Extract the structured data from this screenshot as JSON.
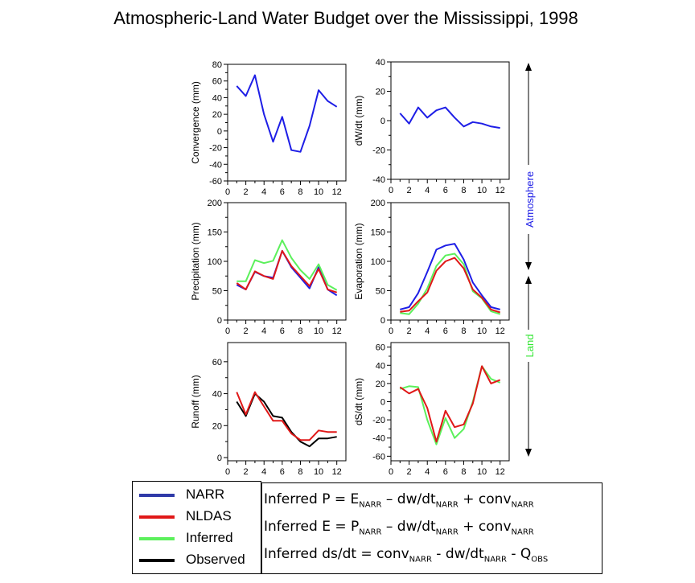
{
  "title": "Atmospheric-Land Water Budget over the Mississippi, 1998",
  "side_labels": {
    "atmosphere": {
      "text": "Atmosphere",
      "color": "#1e1ee6"
    },
    "land": {
      "text": "Land",
      "color": "#33e633"
    }
  },
  "legend": [
    {
      "label": "NARR",
      "color": "#2f3aa8"
    },
    {
      "label": "NLDAS",
      "color": "#e01818"
    },
    {
      "label": "Inferred",
      "color": "#5cf05c"
    },
    {
      "label": "Observed",
      "color": "#000000"
    }
  ],
  "formulas": [
    {
      "parts": [
        "Inferred P = E",
        "NARR",
        " – dw/dt",
        "NARR",
        " + conv",
        "NARR"
      ]
    },
    {
      "parts": [
        "Inferred E = P",
        "NARR",
        " – dw/dt",
        "NARR",
        " + conv",
        "NARR"
      ]
    },
    {
      "parts": [
        "Inferred ds/dt = conv",
        "NARR",
        " - dw/dt",
        "NARR",
        " - Q",
        "OBS"
      ]
    }
  ],
  "chart_data": [
    {
      "type": "line",
      "ylabel": "Convergence (mm)",
      "xlim": [
        0,
        13
      ],
      "ylim": [
        -60,
        80
      ],
      "xticks": [
        0,
        2,
        4,
        6,
        8,
        10,
        12
      ],
      "yticks": [
        -60,
        -40,
        -20,
        0,
        20,
        40,
        60,
        80
      ],
      "x": [
        1,
        2,
        3,
        4,
        5,
        6,
        7,
        8,
        9,
        10,
        11,
        12
      ],
      "series": [
        {
          "color": "#1e1ee6",
          "values": [
            54,
            42,
            67,
            20,
            -13,
            17,
            -23,
            -25,
            6,
            49,
            36,
            29
          ]
        }
      ]
    },
    {
      "type": "line",
      "ylabel": "dW/dt (mm)",
      "xlim": [
        0,
        13
      ],
      "ylim": [
        -40,
        40
      ],
      "xticks": [
        0,
        2,
        4,
        6,
        8,
        10,
        12
      ],
      "yticks": [
        -40,
        -20,
        0,
        20,
        40
      ],
      "x": [
        1,
        2,
        3,
        4,
        5,
        6,
        7,
        8,
        9,
        10,
        11,
        12
      ],
      "series": [
        {
          "color": "#1e1ee6",
          "values": [
            5,
            -2,
            9,
            2,
            7,
            9,
            2,
            -4,
            -1,
            -2,
            -4,
            -5
          ]
        }
      ]
    },
    {
      "type": "line",
      "ylabel": "Precipitation (mm)",
      "xlim": [
        0,
        13
      ],
      "ylim": [
        0,
        200
      ],
      "xticks": [
        0,
        2,
        4,
        6,
        8,
        10,
        12
      ],
      "yticks": [
        0,
        50,
        100,
        150,
        200
      ],
      "x": [
        1,
        2,
        3,
        4,
        5,
        6,
        7,
        8,
        9,
        10,
        11,
        12
      ],
      "series": [
        {
          "color": "#1e1ee6",
          "values": [
            60,
            52,
            82,
            75,
            72,
            118,
            90,
            72,
            54,
            90,
            52,
            42
          ]
        },
        {
          "color": "#5cf05c",
          "values": [
            66,
            66,
            102,
            97,
            101,
            136,
            106,
            85,
            70,
            95,
            60,
            51
          ]
        },
        {
          "color": "#e01818",
          "values": [
            63,
            52,
            83,
            75,
            70,
            118,
            92,
            75,
            58,
            87,
            52,
            47
          ]
        }
      ]
    },
    {
      "type": "line",
      "ylabel": "Evaporation (mm)",
      "xlim": [
        0,
        13
      ],
      "ylim": [
        0,
        200
      ],
      "xticks": [
        0,
        2,
        4,
        6,
        8,
        10,
        12
      ],
      "yticks": [
        0,
        50,
        100,
        150,
        200
      ],
      "x": [
        1,
        2,
        3,
        4,
        5,
        6,
        7,
        8,
        9,
        10,
        11,
        12
      ],
      "series": [
        {
          "color": "#1e1ee6",
          "values": [
            18,
            22,
            46,
            82,
            120,
            127,
            130,
            103,
            64,
            42,
            22,
            18
          ]
        },
        {
          "color": "#5cf05c",
          "values": [
            12,
            10,
            28,
            54,
            92,
            110,
            113,
            95,
            49,
            37,
            15,
            10
          ]
        },
        {
          "color": "#e01818",
          "values": [
            14,
            16,
            32,
            47,
            84,
            100,
            106,
            88,
            52,
            38,
            18,
            13
          ]
        }
      ]
    },
    {
      "type": "line",
      "ylabel": "Runoff (mm)",
      "xlim": [
        0,
        13
      ],
      "ylim": [
        -2,
        72
      ],
      "xticks": [
        0,
        2,
        4,
        6,
        8,
        10,
        12
      ],
      "yticks": [
        0,
        20,
        40,
        60
      ],
      "x": [
        1,
        2,
        3,
        4,
        5,
        6,
        7,
        8,
        9,
        10,
        11,
        12
      ],
      "series": [
        {
          "color": "#000000",
          "values": [
            35,
            26,
            40,
            35,
            26,
            25,
            16,
            10,
            7,
            12,
            12,
            13
          ]
        },
        {
          "color": "#e01818",
          "values": [
            41,
            27,
            41,
            32,
            23,
            23,
            15,
            11,
            11,
            17,
            16,
            16
          ]
        }
      ]
    },
    {
      "type": "line",
      "ylabel": "dS/dt (mm)",
      "xlim": [
        0,
        13
      ],
      "ylim": [
        -65,
        65
      ],
      "xticks": [
        0,
        2,
        4,
        6,
        8,
        10,
        12
      ],
      "yticks": [
        -60,
        -40,
        -20,
        0,
        20,
        40,
        60
      ],
      "x": [
        1,
        2,
        3,
        4,
        5,
        6,
        7,
        8,
        9,
        10,
        11,
        12
      ],
      "series": [
        {
          "color": "#5cf05c",
          "values": [
            14,
            17,
            16,
            -20,
            -47,
            -18,
            -40,
            -30,
            0,
            39,
            25,
            21
          ]
        },
        {
          "color": "#e01818",
          "values": [
            16,
            9,
            14,
            -7,
            -44,
            -10,
            -28,
            -25,
            -2,
            39,
            20,
            24
          ]
        }
      ]
    }
  ]
}
